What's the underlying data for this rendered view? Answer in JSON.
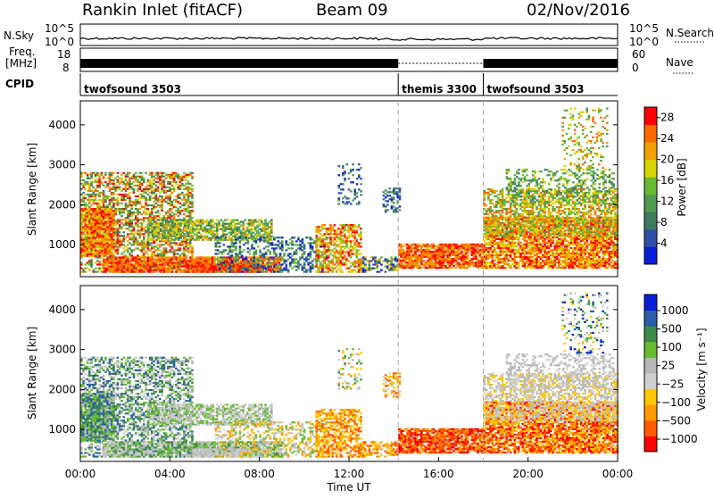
{
  "header": {
    "station": "Rankin Inlet (fitACF)",
    "beam": "Beam 09",
    "date": "02/Nov/2016"
  },
  "strip_labels": {
    "nsky": "N.Sky",
    "nsky_top": "10^5",
    "nsky_bottom": "10^0",
    "nsearch": "N.Search",
    "nsearch_top": "10^5",
    "nsearch_bottom": "10^0",
    "freq_line1": "Freq.",
    "freq_line2": "[MHz]",
    "freq_top": "18",
    "freq_bottom": "8",
    "nave": "Nave",
    "nave_top": "60",
    "nave_bottom": "0",
    "cpid": "CPID"
  },
  "cpid_segments": [
    {
      "label": "twofsound 3503",
      "start_hour": 0
    },
    {
      "label": "themis 3300",
      "start_hour": 14.2
    },
    {
      "label": "twofsound 3503",
      "start_hour": 18.0
    }
  ],
  "colors": {
    "power": [
      "#0b1fd6",
      "#2f4fa8",
      "#3d7a5f",
      "#4f9a55",
      "#66bb33",
      "#d7d400",
      "#f0a100",
      "#ff6a00",
      "#ff0000"
    ],
    "velocity": [
      "#ff0000",
      "#ff5a00",
      "#ff9a00",
      "#ffc800",
      "#cfcfcf",
      "#b8b8b8",
      "#66bb33",
      "#3d8a4a",
      "#2a5fa8",
      "#0b1fd6"
    ]
  },
  "chart_data": [
    {
      "type": "heatmap",
      "name_panel": "power",
      "ylabel": "Slant Range [km]",
      "xlabel": "",
      "y_ticks": [
        "1000",
        "2000",
        "3000",
        "4000"
      ],
      "y_tick_values": [
        1000,
        2000,
        3000,
        4000
      ],
      "ylim": [
        200,
        4600
      ],
      "xlim": [
        0,
        24
      ],
      "colorbar_label": "Power [dB]",
      "colorbar_ticks": [
        "4",
        "8",
        "12",
        "16",
        "20",
        "24",
        "28"
      ],
      "clim": [
        0,
        30
      ]
    },
    {
      "type": "heatmap",
      "name_panel": "velocity",
      "ylabel": "Slant Range [km]",
      "xlabel": "Time UT",
      "x_ticks": [
        "00:00",
        "04:00",
        "08:00",
        "12:00",
        "16:00",
        "20:00",
        "00:00"
      ],
      "x_tick_values": [
        0,
        4,
        8,
        12,
        16,
        20,
        24
      ],
      "y_ticks": [
        "1000",
        "2000",
        "3000",
        "4000"
      ],
      "y_tick_values": [
        1000,
        2000,
        3000,
        4000
      ],
      "ylim": [
        200,
        4600
      ],
      "xlim": [
        0,
        24
      ],
      "colorbar_label": "Velocity [m s⁻¹]",
      "colorbar_ticks": [
        "1000",
        "500",
        "100",
        "25",
        "−25",
        "−100",
        "−500",
        "−1000"
      ]
    }
  ]
}
